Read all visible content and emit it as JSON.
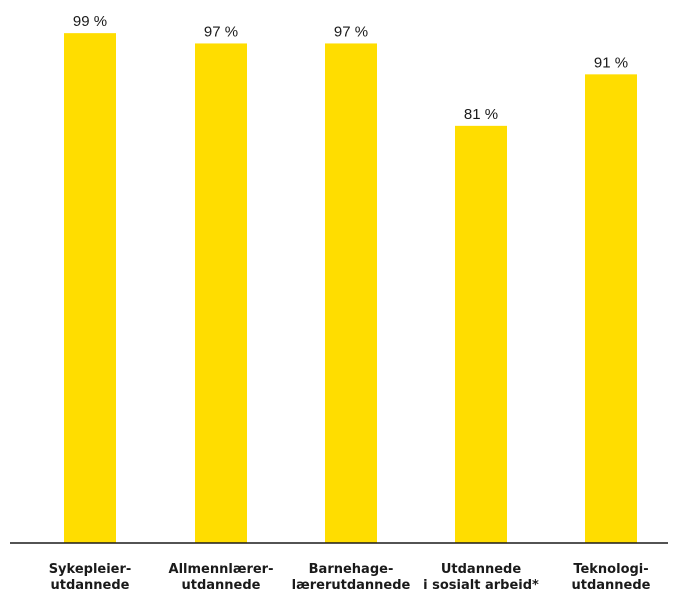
{
  "chart_data": {
    "type": "bar",
    "categories": [
      [
        "Sykepleier-",
        "utdannede"
      ],
      [
        "Allmennlærer-",
        "utdannede"
      ],
      [
        "Barnehage-",
        "lærerutdannede"
      ],
      [
        "Utdannede",
        "i sosialt arbeid*"
      ],
      [
        "Teknologi-",
        "utdannede"
      ]
    ],
    "values": [
      99,
      97,
      97,
      81,
      91
    ],
    "value_labels": [
      "99 %",
      "97 %",
      "97 %",
      "81 %",
      "91 %"
    ],
    "ylim": [
      0,
      100
    ],
    "bar_color": "#FFDD00",
    "axis_color": "#1a1a1a",
    "grid": false,
    "title": "",
    "xlabel": "",
    "ylabel": ""
  }
}
